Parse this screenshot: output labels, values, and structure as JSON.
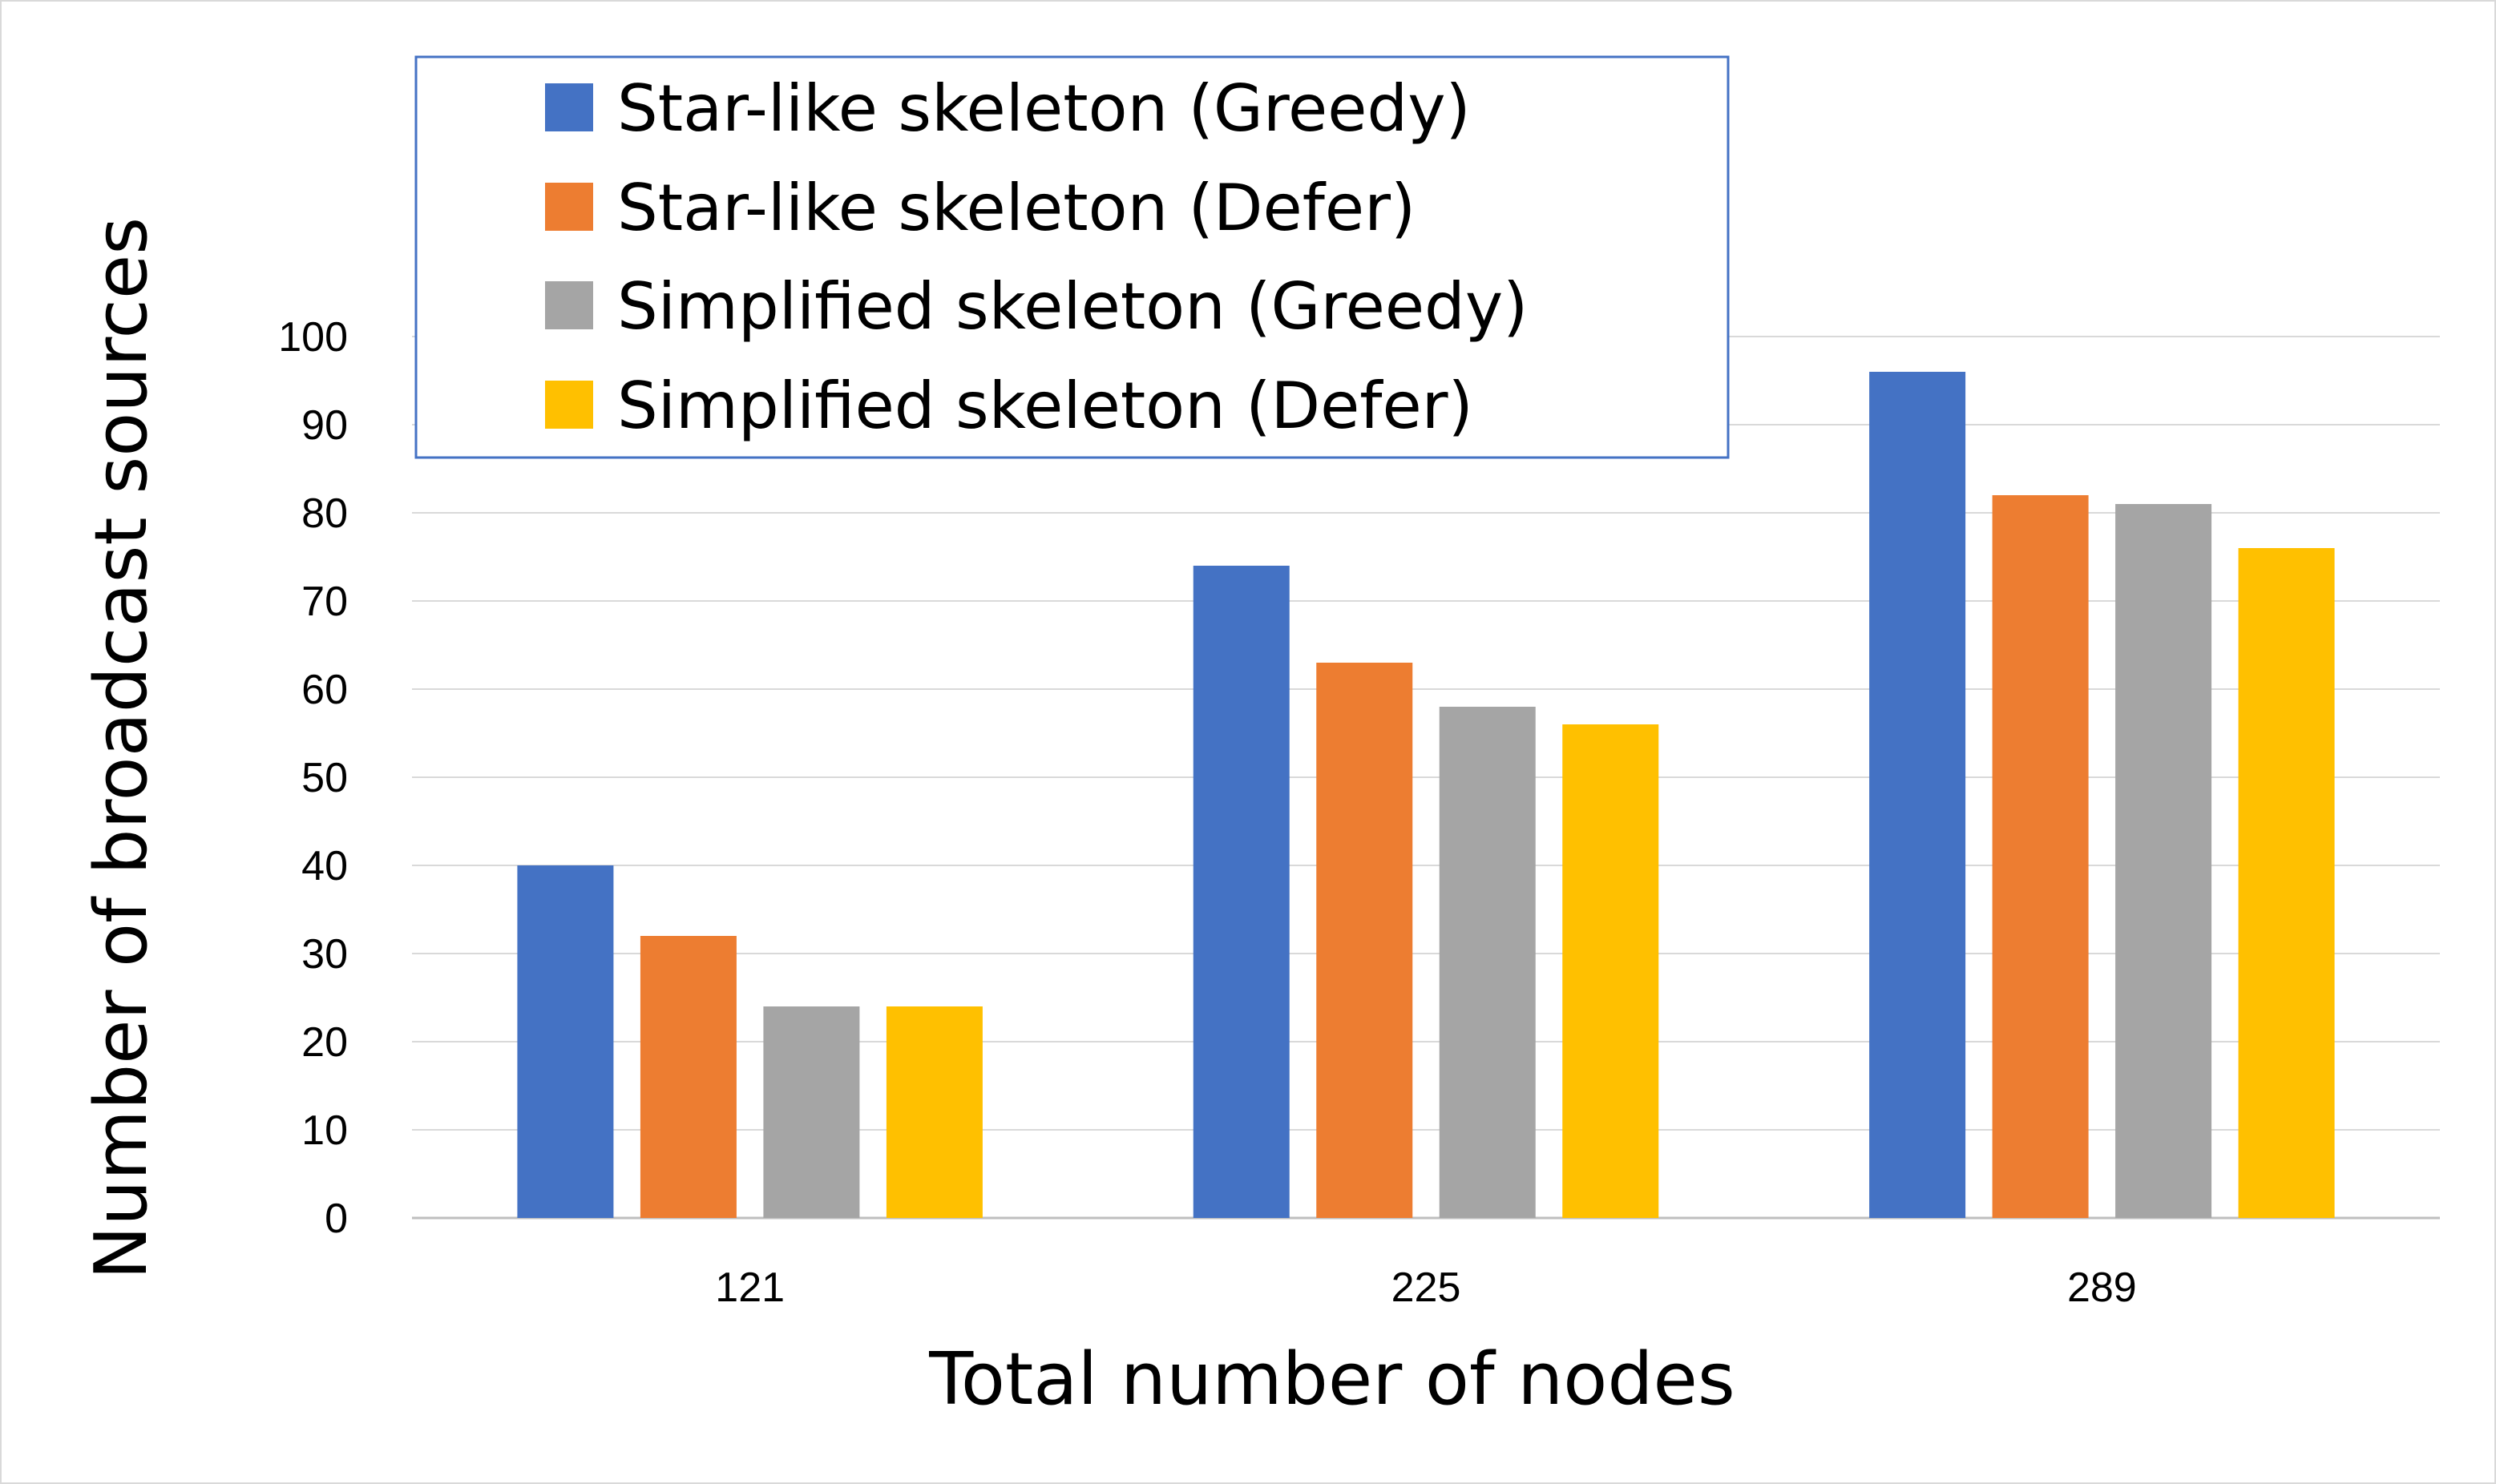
{
  "chart_data": {
    "type": "bar",
    "title": "",
    "xlabel": "Total number of nodes",
    "ylabel": "Number of broadcast sources",
    "categories": [
      "121",
      "225",
      "289"
    ],
    "ylim": [
      0,
      100
    ],
    "yticks": [
      0,
      10,
      20,
      30,
      40,
      50,
      60,
      70,
      80,
      90,
      100
    ],
    "grid": true,
    "legend_position": "top-left",
    "series": [
      {
        "name": "Star-like skeleton (Greedy)",
        "color": "#4472c4",
        "values": [
          40,
          74,
          96
        ]
      },
      {
        "name": "Star-like skeleton (Defer)",
        "color": "#ed7d31",
        "values": [
          32,
          63,
          82
        ]
      },
      {
        "name": "Simplified skeleton (Greedy)",
        "color": "#a5a5a5",
        "values": [
          24,
          58,
          81
        ]
      },
      {
        "name": "Simplified skeleton (Defer)",
        "color": "#ffc000",
        "values": [
          24,
          56,
          76
        ]
      }
    ]
  }
}
